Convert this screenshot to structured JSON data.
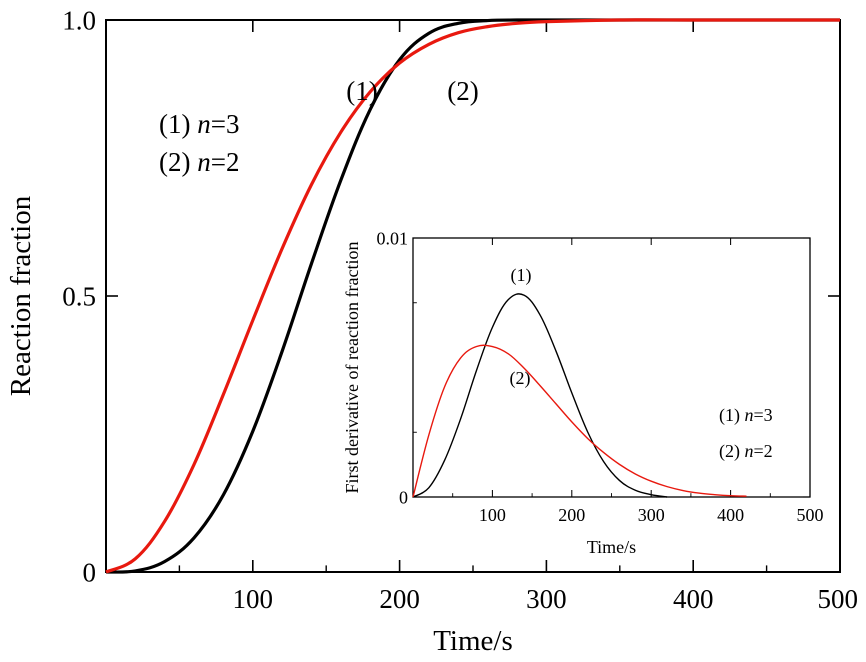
{
  "chart_data": [
    {
      "type": "line",
      "title": "",
      "xlabel": "Time/s",
      "ylabel": "Reaction fraction",
      "xlim": [
        0,
        500
      ],
      "ylim": [
        0,
        1.0
      ],
      "x_ticks": [
        100,
        200,
        300,
        400,
        500
      ],
      "x_tick_labels": [
        "100",
        "200",
        "300",
        "400",
        "500"
      ],
      "y_ticks": [
        0,
        0.5,
        1.0
      ],
      "y_tick_labels": [
        "0",
        "0.5",
        "1.0"
      ],
      "grid": false,
      "legend": {
        "placement": "upper-left",
        "entries": [
          {
            "label": "(1) ",
            "italic": "n",
            "suffix": "=3"
          },
          {
            "label": "(2) ",
            "italic": "n",
            "suffix": "=2"
          }
        ]
      },
      "annotations": [
        {
          "text": "(1)",
          "series": "(1)"
        },
        {
          "text": "(2)",
          "series": "(2)"
        }
      ],
      "series": [
        {
          "name": "(1)",
          "color": "#000000",
          "x": [
            0,
            20,
            40,
            60,
            80,
            100,
            120,
            140,
            160,
            180,
            200,
            220,
            240,
            260,
            280,
            300,
            350,
            400,
            450,
            500
          ],
          "y": [
            0,
            0.002,
            0.019,
            0.062,
            0.14,
            0.255,
            0.4,
            0.559,
            0.71,
            0.838,
            0.928,
            0.976,
            0.994,
            0.999,
            1.0,
            1.0,
            1.0,
            1.0,
            1.0,
            1.0
          ]
        },
        {
          "name": "(2)",
          "color": "#e8190f",
          "x": [
            0,
            20,
            40,
            60,
            80,
            100,
            120,
            140,
            160,
            180,
            200,
            220,
            240,
            260,
            280,
            300,
            350,
            400,
            450,
            500
          ],
          "y": [
            0,
            0.024,
            0.092,
            0.195,
            0.322,
            0.456,
            0.586,
            0.702,
            0.797,
            0.87,
            0.922,
            0.956,
            0.977,
            0.988,
            0.994,
            0.997,
            1.0,
            1.0,
            1.0,
            1.0
          ]
        }
      ]
    },
    {
      "type": "line",
      "title": "",
      "xlabel": "Time/s",
      "ylabel": "First derivative of reaction fraction",
      "xlim": [
        0,
        500
      ],
      "ylim": [
        0,
        0.01
      ],
      "x_ticks": [
        100,
        200,
        300,
        400,
        500
      ],
      "x_tick_labels": [
        "100",
        "200",
        "300",
        "400",
        "500"
      ],
      "y_ticks": [
        0,
        0.01
      ],
      "y_tick_labels": [
        "0",
        "0.01"
      ],
      "grid": false,
      "legend": {
        "placement": "lower-right",
        "entries": [
          {
            "label": "(1) ",
            "italic": "n",
            "suffix": "=3"
          },
          {
            "label": "(2) ",
            "italic": "n",
            "suffix": "=2"
          }
        ]
      },
      "annotations": [
        {
          "text": "(1)",
          "series": "(1)"
        },
        {
          "text": "(2)",
          "series": "(2)"
        }
      ],
      "series": [
        {
          "name": "(1)",
          "color": "#000000",
          "x": [
            0,
            20,
            40,
            60,
            80,
            100,
            120,
            140,
            160,
            180,
            200,
            220,
            240,
            260,
            280,
            300,
            320
          ],
          "y": [
            0,
            0.00036,
            0.00143,
            0.00302,
            0.00489,
            0.00655,
            0.00762,
            0.00779,
            0.00703,
            0.00564,
            0.00402,
            0.00251,
            0.00137,
            0.00064,
            0.00026,
            9e-05,
            0
          ]
        },
        {
          "name": "(2)",
          "color": "#e8190f",
          "x": [
            0,
            20,
            40,
            60,
            80,
            100,
            120,
            140,
            160,
            180,
            200,
            220,
            240,
            260,
            280,
            300,
            320,
            340,
            360,
            380,
            400,
            420
          ],
          "y": [
            0,
            0.0024,
            0.00427,
            0.00537,
            0.00581,
            0.00581,
            0.00553,
            0.00497,
            0.0043,
            0.0036,
            0.0029,
            0.00226,
            0.00172,
            0.00126,
            0.00089,
            0.00061,
            0.0004,
            0.00025,
            0.00015,
            9e-05,
            5e-05,
            3e-05
          ]
        }
      ]
    }
  ]
}
